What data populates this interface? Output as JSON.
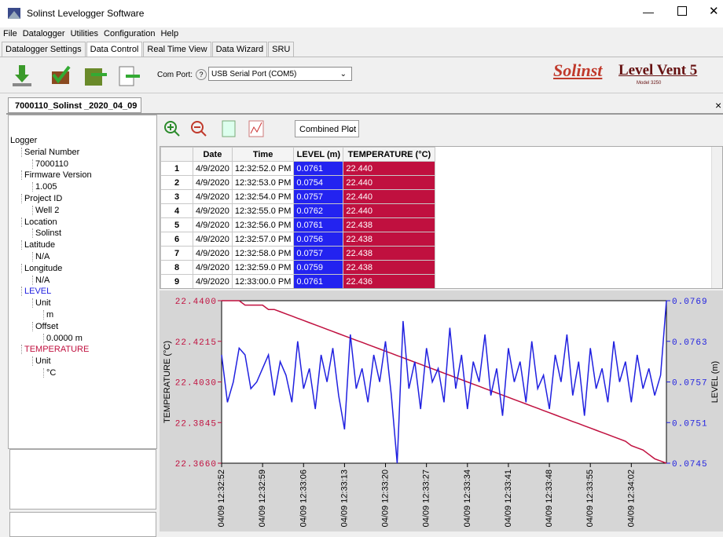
{
  "window": {
    "title": "Solinst Levelogger Software"
  },
  "menu": [
    "File",
    "Datalogger",
    "Utilities",
    "Configuration",
    "Help"
  ],
  "tabs": [
    "Datalogger Settings",
    "Data Control",
    "Real Time View",
    "Data Wizard",
    "SRU"
  ],
  "toolbar": {
    "com_port_label": "Com Port:",
    "com_port": "USB Serial Port (COM5)",
    "brand": "Solinst",
    "product": "Level Vent 5",
    "model": "Model 3250"
  },
  "document_tab": "7000110_Solinst _2020_04_09",
  "tree": [
    {
      "label": "Logger",
      "depth": 0
    },
    {
      "label": "Serial Number",
      "depth": 1
    },
    {
      "label": "7000110",
      "depth": 2
    },
    {
      "label": "Firmware Version",
      "depth": 1
    },
    {
      "label": "1.005",
      "depth": 2
    },
    {
      "label": "Project ID",
      "depth": 1
    },
    {
      "label": "Well 2",
      "depth": 2
    },
    {
      "label": "Location",
      "depth": 1
    },
    {
      "label": "Solinst",
      "depth": 2
    },
    {
      "label": "Latitude",
      "depth": 1
    },
    {
      "label": "N/A",
      "depth": 2
    },
    {
      "label": "Longitude",
      "depth": 1
    },
    {
      "label": "N/A",
      "depth": 2
    },
    {
      "label": "LEVEL",
      "depth": 1,
      "color": "#2020e0"
    },
    {
      "label": "Unit",
      "depth": 2
    },
    {
      "label": "m",
      "depth": 3
    },
    {
      "label": "Offset",
      "depth": 2
    },
    {
      "label": "0.0000 m",
      "depth": 3
    },
    {
      "label": "TEMPERATURE",
      "depth": 1,
      "color": "#c0103f"
    },
    {
      "label": "Unit",
      "depth": 2
    },
    {
      "label": "°C",
      "depth": 3
    }
  ],
  "view_mode": "Combined Plot",
  "table": {
    "columns": [
      "Date",
      "Time",
      "LEVEL (m)",
      "TEMPERATURE (°C)"
    ],
    "rows": [
      [
        1,
        "4/9/2020",
        "12:32:52.0 PM",
        "0.0761",
        "22.440"
      ],
      [
        2,
        "4/9/2020",
        "12:32:53.0 PM",
        "0.0754",
        "22.440"
      ],
      [
        3,
        "4/9/2020",
        "12:32:54.0 PM",
        "0.0757",
        "22.440"
      ],
      [
        4,
        "4/9/2020",
        "12:32:55.0 PM",
        "0.0762",
        "22.440"
      ],
      [
        5,
        "4/9/2020",
        "12:32:56.0 PM",
        "0.0761",
        "22.438"
      ],
      [
        6,
        "4/9/2020",
        "12:32:57.0 PM",
        "0.0756",
        "22.438"
      ],
      [
        7,
        "4/9/2020",
        "12:32:58.0 PM",
        "0.0757",
        "22.438"
      ],
      [
        8,
        "4/9/2020",
        "12:32:59.0 PM",
        "0.0759",
        "22.438"
      ],
      [
        9,
        "4/9/2020",
        "12:33:00.0 PM",
        "0.0761",
        "22.436"
      ]
    ]
  },
  "plot": {
    "type": "line",
    "ylabel": "TEMPERATURE (°C)",
    "y2label": "LEVEL (m)",
    "x": [
      0,
      1,
      2,
      3,
      4,
      5,
      6,
      7,
      8,
      9,
      10,
      11,
      12,
      13,
      14,
      15,
      16,
      17,
      18,
      19,
      20,
      21,
      22,
      23,
      24,
      25,
      26,
      27,
      28,
      29,
      30,
      31,
      32,
      33,
      34,
      35,
      36,
      37,
      38,
      39,
      40,
      41,
      42,
      43,
      44,
      45,
      46,
      47,
      48,
      49,
      50,
      51,
      52,
      53,
      54,
      55,
      56,
      57,
      58,
      59,
      60,
      61,
      62,
      63,
      64,
      65,
      66,
      67,
      68,
      69,
      70,
      71,
      72,
      73,
      74,
      75,
      76
    ],
    "xlim": [
      0,
      76
    ],
    "xticks": [
      {
        "value": 0,
        "label": "04/09 12:32:52"
      },
      {
        "value": 7,
        "label": "04/09 12:32:59"
      },
      {
        "value": 14,
        "label": "04/09 12:33:06"
      },
      {
        "value": 21,
        "label": "04/09 12:33:13"
      },
      {
        "value": 28,
        "label": "04/09 12:33:20"
      },
      {
        "value": 35,
        "label": "04/09 12:33:27"
      },
      {
        "value": 42,
        "label": "04/09 12:33:34"
      },
      {
        "value": 49,
        "label": "04/09 12:33:41"
      },
      {
        "value": 56,
        "label": "04/09 12:33:48"
      },
      {
        "value": 63,
        "label": "04/09 12:33:55"
      },
      {
        "value": 70,
        "label": "04/09 12:34:02"
      }
    ],
    "ylim": [
      22.366,
      22.44
    ],
    "yticks": [
      {
        "value": 22.44,
        "label": "22.4400"
      },
      {
        "value": 22.4215,
        "label": "22.4215"
      },
      {
        "value": 22.403,
        "label": "22.4030"
      },
      {
        "value": 22.3845,
        "label": "22.3845"
      },
      {
        "value": 22.366,
        "label": "22.3660"
      }
    ],
    "y2lim": [
      0.0745,
      0.0769
    ],
    "y2ticks": [
      0.0769,
      0.0763,
      0.0757,
      0.0751,
      0.0745
    ],
    "series": [
      {
        "color": "#c0103f",
        "axis": "y",
        "values": [
          22.44,
          22.44,
          22.44,
          22.44,
          22.438,
          22.438,
          22.438,
          22.438,
          22.436,
          22.436,
          22.435,
          22.434,
          22.433,
          22.432,
          22.431,
          22.43,
          22.429,
          22.428,
          22.427,
          22.426,
          22.425,
          22.424,
          22.423,
          22.422,
          22.421,
          22.42,
          22.419,
          22.418,
          22.417,
          22.416,
          22.415,
          22.414,
          22.413,
          22.412,
          22.411,
          22.41,
          22.409,
          22.408,
          22.407,
          22.406,
          22.405,
          22.404,
          22.403,
          22.402,
          22.401,
          22.4,
          22.399,
          22.398,
          22.397,
          22.396,
          22.395,
          22.394,
          22.393,
          22.392,
          22.391,
          22.39,
          22.389,
          22.388,
          22.387,
          22.386,
          22.385,
          22.384,
          22.383,
          22.382,
          22.381,
          22.38,
          22.379,
          22.378,
          22.377,
          22.376,
          22.374,
          22.373,
          22.372,
          22.37,
          22.368,
          22.367,
          22.366
        ]
      },
      {
        "color": "#2020e0",
        "axis": "y2",
        "values": [
          0.0761,
          0.0754,
          0.0757,
          0.0762,
          0.0761,
          0.0756,
          0.0757,
          0.0759,
          0.0761,
          0.0755,
          0.076,
          0.0758,
          0.0754,
          0.0763,
          0.0756,
          0.0759,
          0.0753,
          0.0761,
          0.0757,
          0.0762,
          0.0755,
          0.075,
          0.0764,
          0.0756,
          0.0759,
          0.0754,
          0.0761,
          0.0757,
          0.0763,
          0.0755,
          0.0745,
          0.0766,
          0.0756,
          0.076,
          0.0753,
          0.0762,
          0.0757,
          0.0759,
          0.0754,
          0.0765,
          0.0756,
          0.0761,
          0.0753,
          0.076,
          0.0757,
          0.0764,
          0.0755,
          0.0759,
          0.0752,
          0.0762,
          0.0757,
          0.076,
          0.0754,
          0.0763,
          0.0756,
          0.0758,
          0.0753,
          0.0761,
          0.0757,
          0.0764,
          0.0755,
          0.076,
          0.0752,
          0.0762,
          0.0756,
          0.0759,
          0.0754,
          0.0763,
          0.0757,
          0.076,
          0.0754,
          0.0761,
          0.0756,
          0.0759,
          0.0755,
          0.0758,
          0.0769
        ]
      }
    ]
  }
}
